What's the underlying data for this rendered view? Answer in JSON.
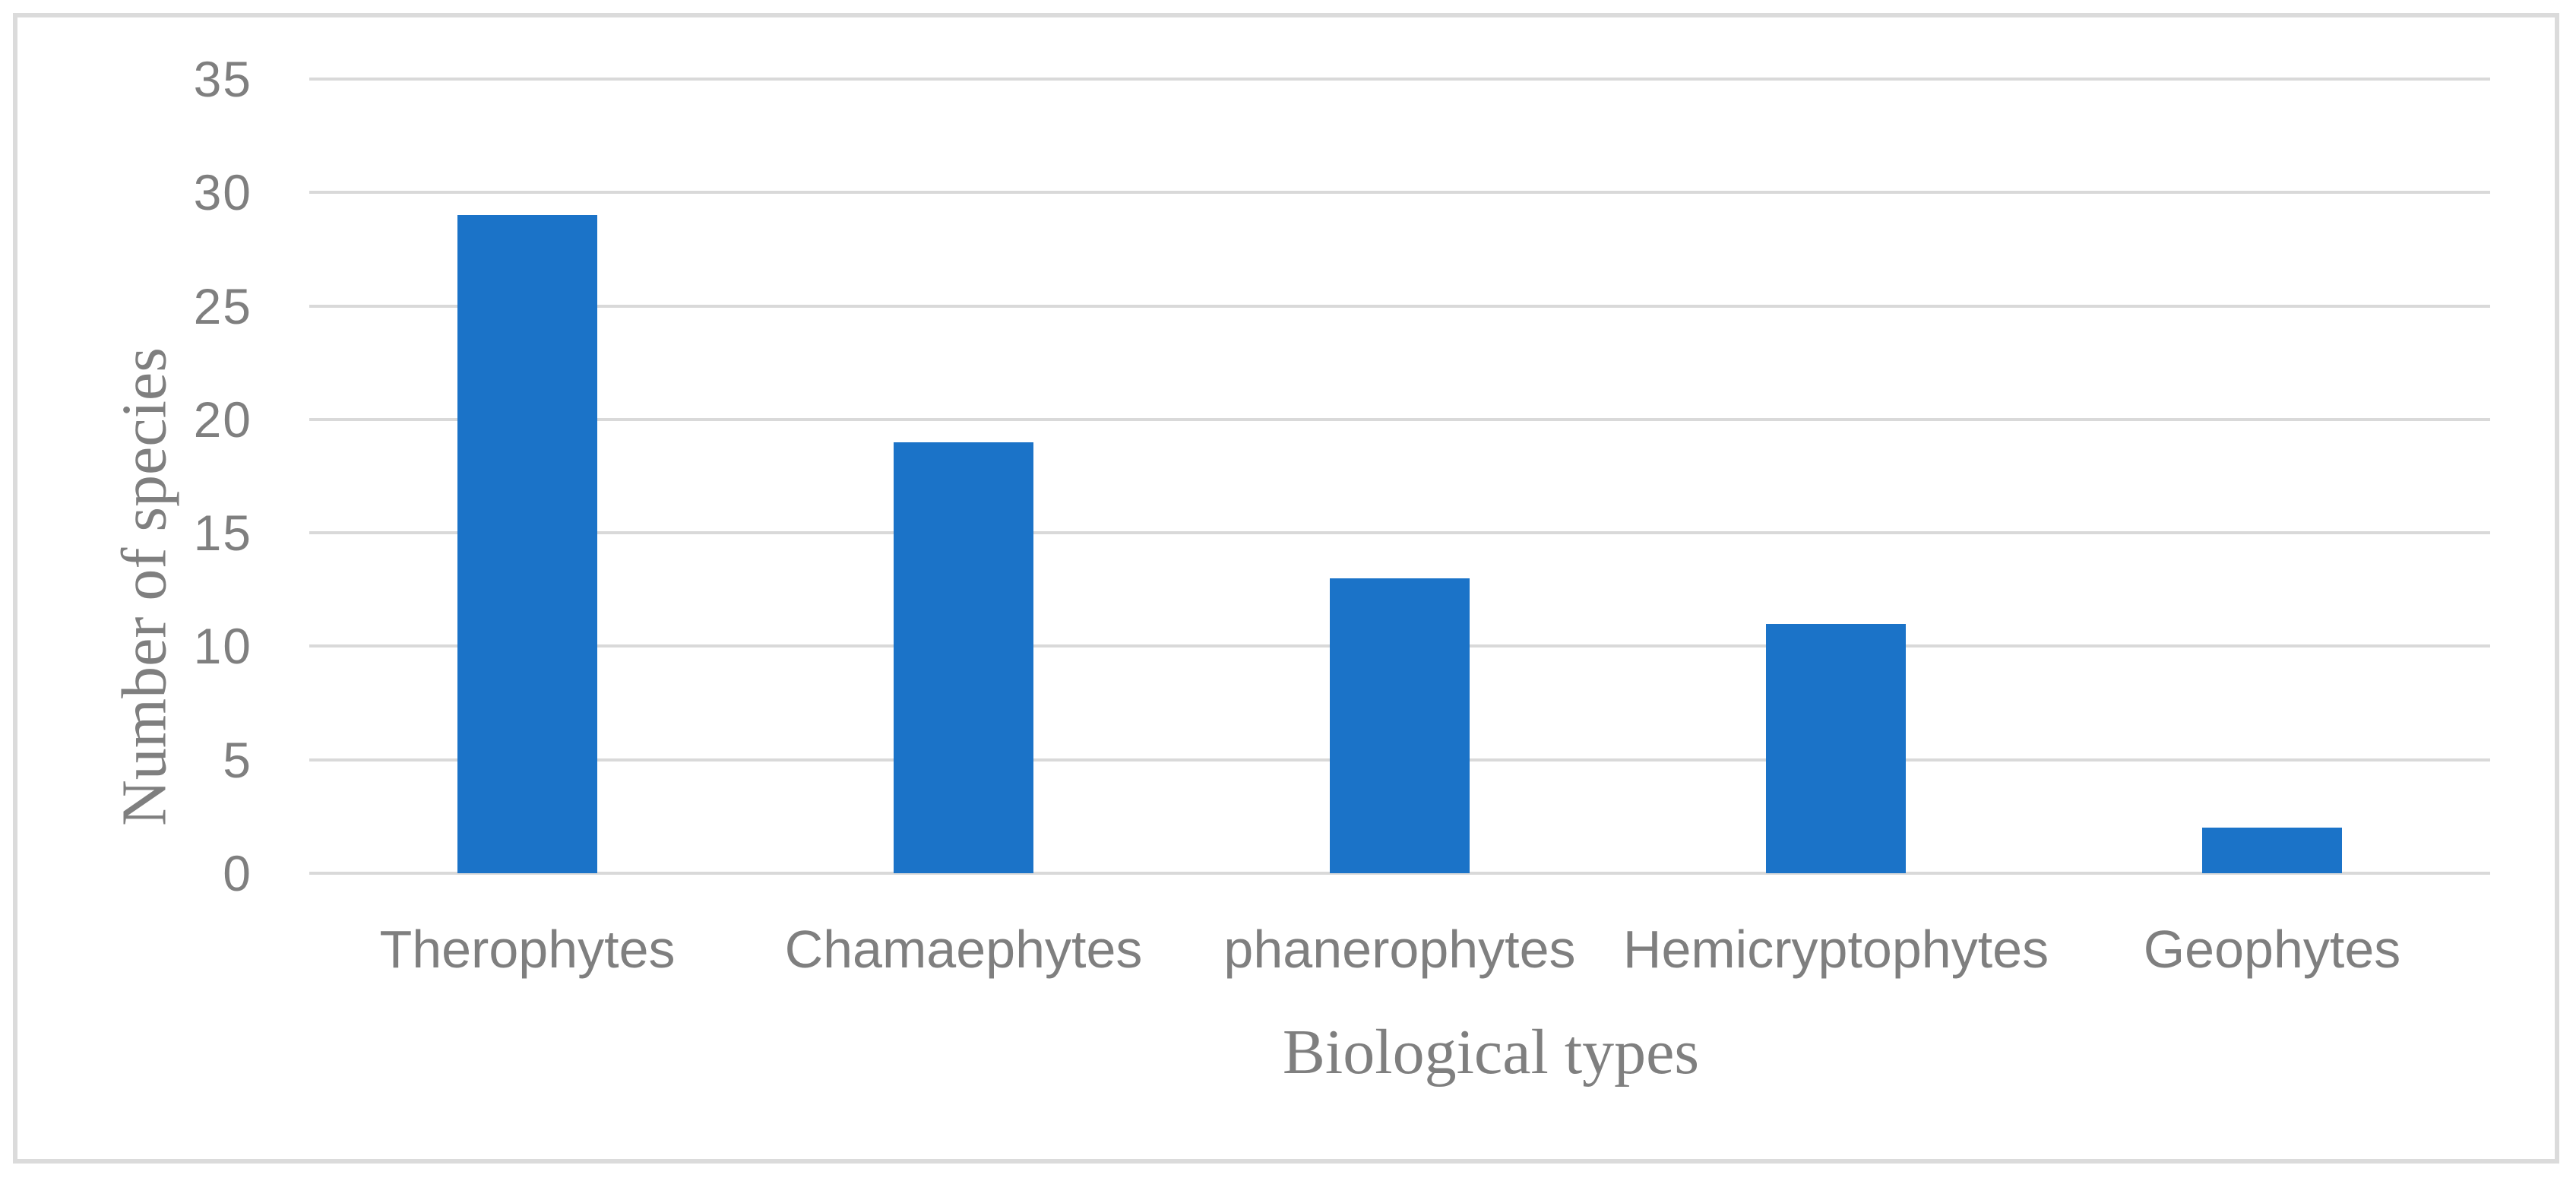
{
  "chart_data": {
    "type": "bar",
    "categories": [
      "Therophytes",
      "Chamaephytes",
      "phanerophytes",
      "Hemicryptophytes",
      "Geophytes"
    ],
    "values": [
      29,
      19,
      13,
      11,
      2
    ],
    "title": "",
    "xlabel": "Biological types",
    "ylabel": "Number of species",
    "ylim": [
      0,
      35
    ],
    "yticks": [
      0,
      5,
      10,
      15,
      20,
      25,
      30,
      35
    ],
    "grid": "horizontal",
    "legend": "none",
    "bar_color": "#1B73C8",
    "gridline_color": "#D9D9D9",
    "text_color": "#7F7F7F",
    "frame_color": "#DBDBDB"
  }
}
